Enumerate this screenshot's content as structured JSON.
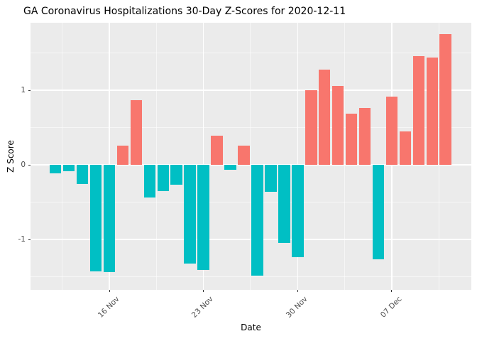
{
  "chart_data": {
    "type": "bar",
    "title": "GA Coronavirus Hospitalizations 30-Day Z-Scores for 2020-12-11",
    "xlabel": "Date",
    "ylabel": "Z Score",
    "legend": "none",
    "grid": true,
    "panel_bg": "#EBEBEB",
    "grid_color": "#FFFFFF",
    "axis_text_color": "#4D4D4D",
    "positive_color": "#F8766D",
    "negative_color": "#00BFC4",
    "ylim": [
      -1.66,
      1.91
    ],
    "y_ticks": [
      -1,
      0,
      1
    ],
    "y_tick_labels": [
      "-1",
      "0",
      "1"
    ],
    "y_minor_ticks": [
      -1.5,
      -0.5,
      0.5,
      1.5
    ],
    "x_tick_indices": [
      4,
      11,
      18,
      25
    ],
    "x_tick_labels": [
      "16 Nov",
      "23 Nov",
      "30 Nov",
      "07 Dec"
    ],
    "x_minor_indices": [
      0.5,
      7.5,
      14.5,
      21.5,
      28.5
    ],
    "dates": [
      "2020-11-12",
      "2020-11-13",
      "2020-11-14",
      "2020-11-15",
      "2020-11-16",
      "2020-11-17",
      "2020-11-18",
      "2020-11-19",
      "2020-11-20",
      "2020-11-21",
      "2020-11-22",
      "2020-11-23",
      "2020-11-24",
      "2020-11-25",
      "2020-11-26",
      "2020-11-27",
      "2020-11-28",
      "2020-11-29",
      "2020-11-30",
      "2020-12-01",
      "2020-12-02",
      "2020-12-03",
      "2020-12-04",
      "2020-12-05",
      "2020-12-06",
      "2020-12-07",
      "2020-12-08",
      "2020-12-09",
      "2020-12-10",
      "2020-12-11"
    ],
    "values": [
      -0.11,
      -0.09,
      -0.26,
      -1.43,
      -1.44,
      0.26,
      0.87,
      -0.44,
      -0.35,
      -0.27,
      -1.32,
      -1.41,
      0.39,
      -0.07,
      0.26,
      -1.49,
      -0.36,
      -1.05,
      -1.24,
      1.0,
      1.28,
      1.06,
      0.69,
      0.76,
      -1.27,
      0.91,
      0.45,
      1.46,
      1.44,
      1.75
    ]
  }
}
